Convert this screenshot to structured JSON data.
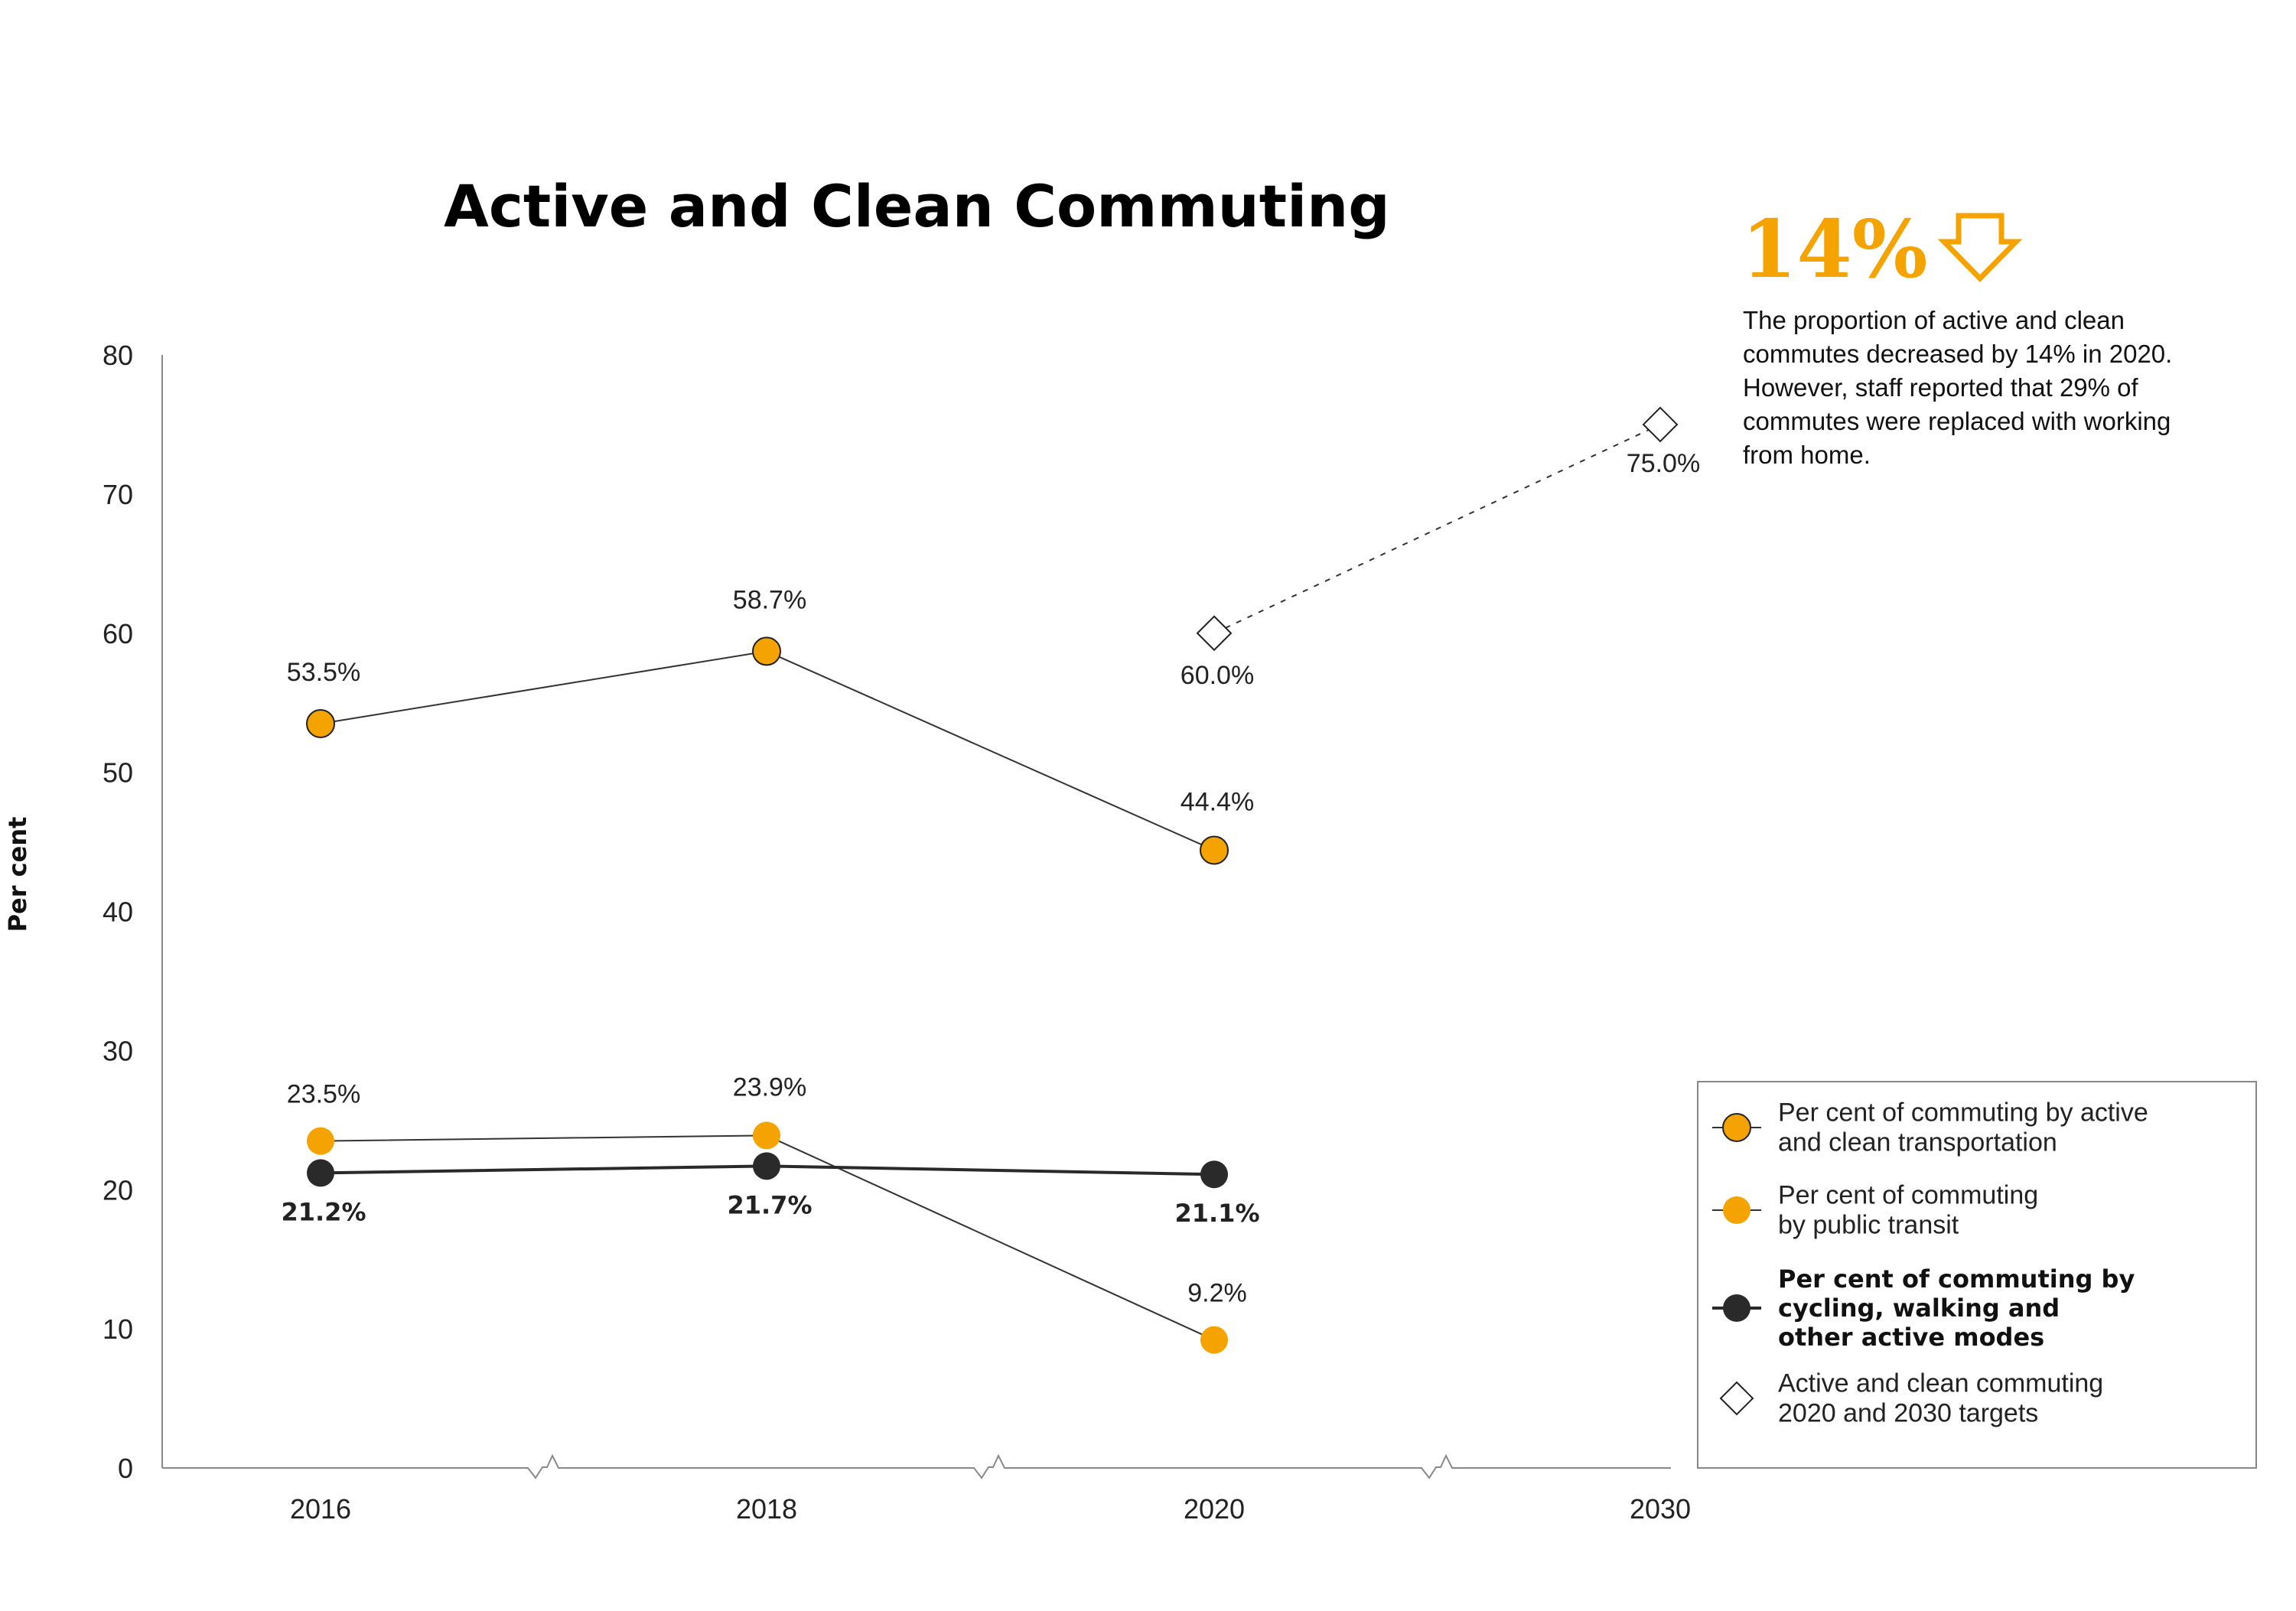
{
  "colors": {
    "orange": "#F5A300",
    "dark": "#2A2A2A",
    "axis": "#888888",
    "line": "#333333"
  },
  "chart_data": {
    "type": "line",
    "title": "Active and Clean Commuting",
    "ylabel": "Per cent",
    "xlabel": "",
    "categories": [
      "2016",
      "2018",
      "2020",
      "2030"
    ],
    "yticks": [
      "0",
      "10",
      "20",
      "30",
      "40",
      "50",
      "60",
      "70",
      "80"
    ],
    "ylim": [
      0,
      80
    ],
    "x_axis_breaks": true,
    "grid": false,
    "legend_position": "bottom-right",
    "series": [
      {
        "name": "Per cent of commuting by active and clean transportation",
        "legend_lines": [
          "Per cent of commuting by active",
          "and clean transportation"
        ],
        "style": "orange-outlined-markers-thin-line",
        "x": [
          "2016",
          "2018",
          "2020"
        ],
        "values": [
          53.5,
          58.7,
          44.4
        ],
        "labels": [
          "53.5%",
          "58.7%",
          "44.4%"
        ]
      },
      {
        "name": "Per cent of commuting by public transit",
        "legend_lines": [
          "Per cent of commuting",
          "by public transit"
        ],
        "style": "orange-markers-thin-line",
        "x": [
          "2016",
          "2018",
          "2020"
        ],
        "values": [
          23.5,
          23.9,
          9.2
        ],
        "labels": [
          "23.5%",
          "23.9%",
          "9.2%"
        ]
      },
      {
        "name": "Per cent of commuting by cycling, walking and other active modes",
        "legend_lines": [
          "Per cent of commuting by",
          "cycling, walking and",
          "other active modes"
        ],
        "style": "dark-markers-thick-line-bold-labels",
        "x": [
          "2016",
          "2018",
          "2020"
        ],
        "values": [
          21.2,
          21.7,
          21.1
        ],
        "labels": [
          "21.2%",
          "21.7%",
          "21.1%"
        ]
      },
      {
        "name": "Active and clean commuting 2020 and 2030 targets",
        "legend_lines": [
          "Active and clean commuting",
          "2020 and 2030 targets"
        ],
        "style": "hollow-diamond-dashed-line",
        "x": [
          "2020",
          "2030"
        ],
        "values": [
          60.0,
          75.0
        ],
        "labels": [
          "60.0%",
          "75.0%"
        ]
      }
    ]
  },
  "callout": {
    "stat": "14%",
    "icon": "down-arrow-icon",
    "lines": [
      "The proportion of active and clean",
      "commutes decreased by 14% in 2020.",
      "However, staff reported that 29% of",
      "commutes were replaced with working",
      "from home."
    ]
  }
}
